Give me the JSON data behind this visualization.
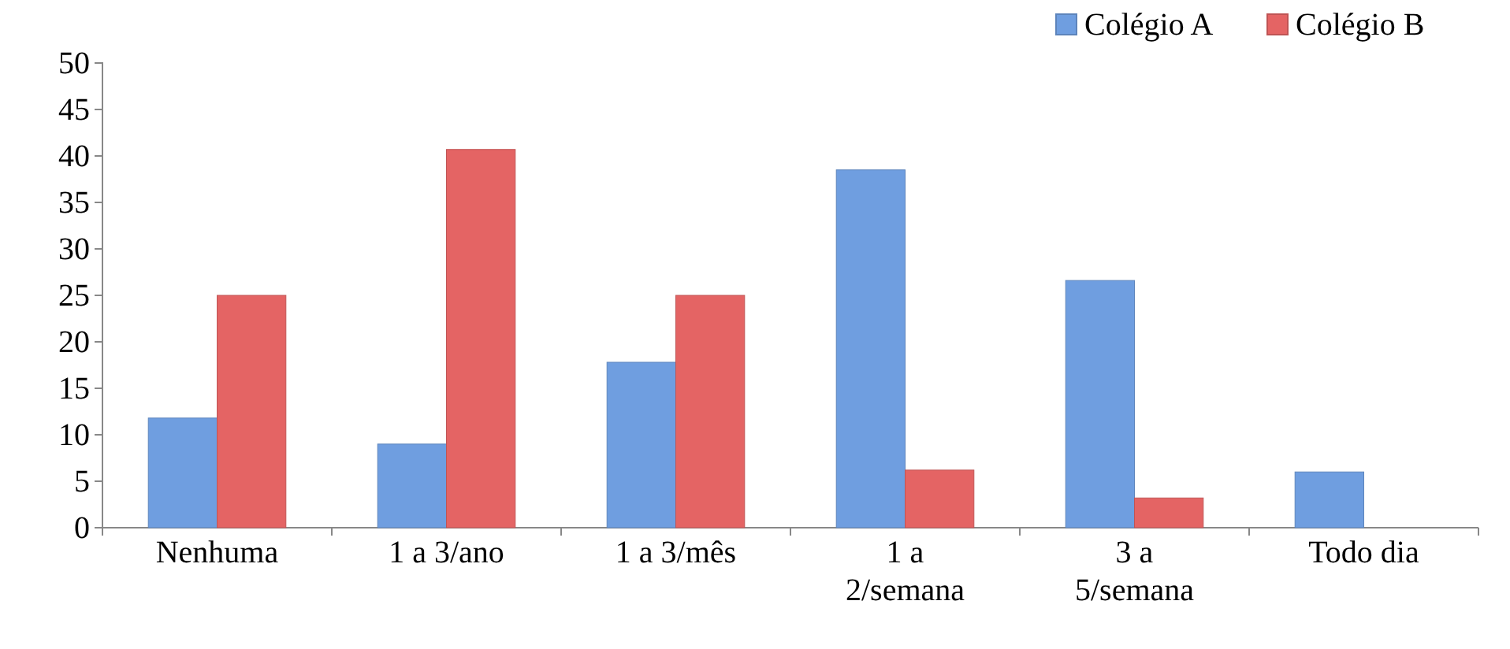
{
  "chart_data": {
    "type": "bar",
    "categories": [
      "Nenhuma",
      "1 a 3/ano",
      "1 a 3/mês",
      "1 a 2/semana",
      "3 a 5/semana",
      "Todo dia"
    ],
    "series": [
      {
        "name": "Colégio A",
        "color": "#6f9ee0",
        "values": [
          11.8,
          9,
          17.8,
          38.5,
          26.6,
          6
        ]
      },
      {
        "name": "Colégio B",
        "color": "#e46464",
        "values": [
          25,
          40.7,
          25,
          6.2,
          3.2,
          0
        ]
      }
    ],
    "ylim": [
      0,
      50
    ],
    "yticks": [
      0,
      5,
      10,
      15,
      20,
      25,
      30,
      35,
      40,
      45,
      50
    ],
    "grid": false,
    "legend": "top right"
  }
}
